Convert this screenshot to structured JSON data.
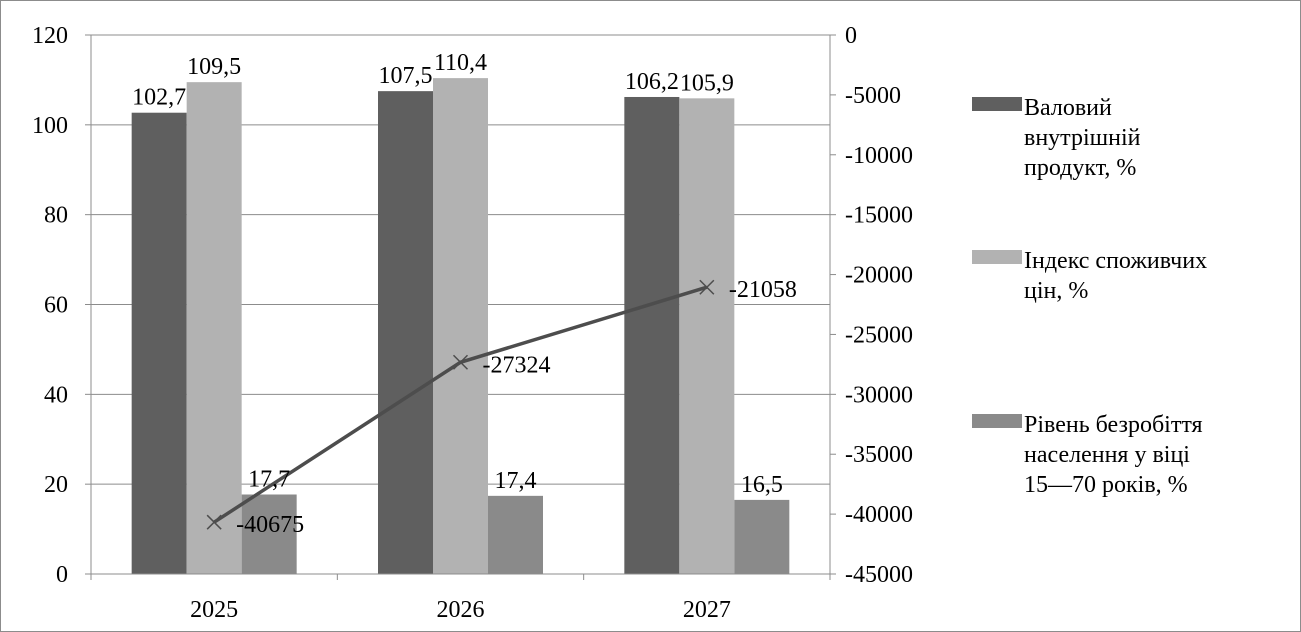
{
  "chart_data": {
    "type": "bar",
    "categories": [
      "2025",
      "2026",
      "2027"
    ],
    "series": [
      {
        "name": "Валовий внутрішній продукт, %",
        "legend_lines": [
          "Валовий",
          "внутрішній",
          "продукт, %"
        ],
        "values": [
          102.7,
          107.5,
          106.2
        ],
        "labels": [
          "102,7",
          "107,5",
          "106,2"
        ],
        "color": "#5f5f5f",
        "axis": "left"
      },
      {
        "name": "Індекс споживчих цін, %",
        "legend_lines": [
          "Індекс споживчих",
          "цін, %"
        ],
        "values": [
          109.5,
          110.4,
          105.9
        ],
        "labels": [
          "109,5",
          "110,4",
          "105,9"
        ],
        "color": "#b2b2b2",
        "axis": "left"
      },
      {
        "name": "Рівень безробіття населення у віці 15—70 років, %",
        "legend_lines": [
          "Рівень безробіття",
          "населення у віці",
          "15—70 років, %"
        ],
        "values": [
          17.7,
          17.4,
          16.5
        ],
        "labels": [
          "17,7",
          "17,4",
          "16,5"
        ],
        "color": "#8a8a8a",
        "axis": "left"
      }
    ],
    "line_series": {
      "type": "line",
      "axis": "right",
      "values": [
        -40675,
        -27324,
        -21058
      ],
      "labels": [
        "-40675",
        "-27324",
        "-21058"
      ],
      "color": "#4d4d4d",
      "marker": "x"
    },
    "left_axis": {
      "ylim": [
        0,
        120
      ],
      "ticks": [
        "0",
        "20",
        "40",
        "60",
        "80",
        "100",
        "120"
      ],
      "tick_values": [
        0,
        20,
        40,
        60,
        80,
        100,
        120
      ]
    },
    "right_axis": {
      "ylim": [
        -45000,
        0
      ],
      "ticks": [
        "-45000",
        "-40000",
        "-35000",
        "-30000",
        "-25000",
        "-20000",
        "-15000",
        "-10000",
        "-5000",
        "0"
      ],
      "tick_values": [
        -45000,
        -40000,
        -35000,
        -30000,
        -25000,
        -20000,
        -15000,
        -10000,
        -5000,
        0
      ]
    },
    "grid": true,
    "legend_position": "right"
  }
}
